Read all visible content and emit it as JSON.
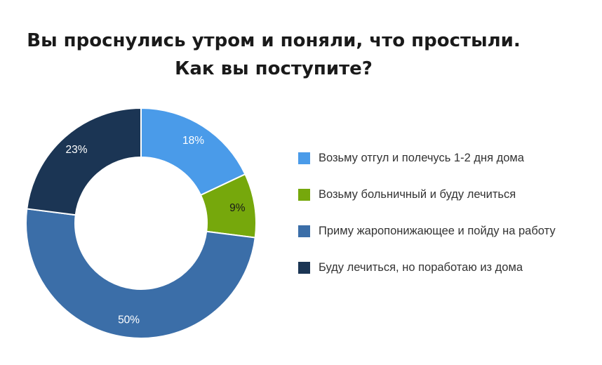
{
  "chart_data": {
    "type": "pie",
    "title_line1": "Вы проснулись утром и поняли, что простыли.",
    "title_line2": "Как вы поступите?",
    "slices": [
      {
        "label": "Возьму отгул и полечусь 1-2 дня дома",
        "value": 18,
        "display": "18%",
        "color": "#4a9be9",
        "label_color": "#ffffff"
      },
      {
        "label": "Возьму больничный и буду лечиться",
        "value": 9,
        "display": "9%",
        "color": "#76a80c",
        "label_color": "#1a1a1a"
      },
      {
        "label": "Приму жаропонижающее и пойду на работу",
        "value": 50,
        "display": "50%",
        "color": "#3b6ea8",
        "label_color": "#ffffff"
      },
      {
        "label": "Буду лечиться, но поработаю из дома",
        "value": 23,
        "display": "23%",
        "color": "#1b3554",
        "label_color": "#ffffff"
      }
    ],
    "legend_position": "right",
    "donut": true
  }
}
